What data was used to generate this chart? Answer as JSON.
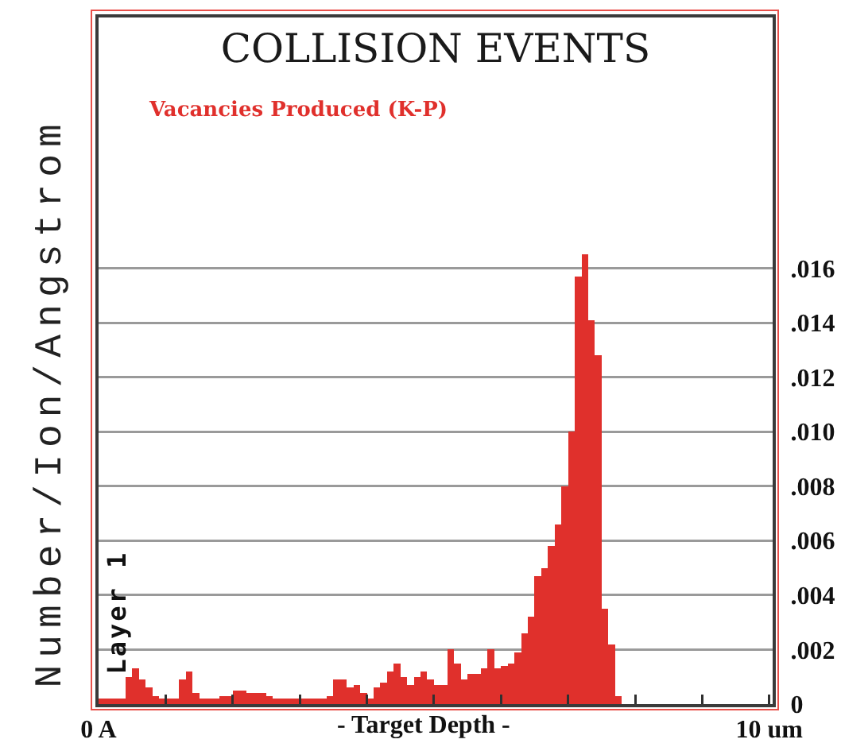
{
  "chart_data": {
    "type": "histogram",
    "title": "COLLISION EVENTS",
    "xlabel": "- Target Depth -",
    "ylabel": "Number/Ion/Angstrom",
    "annotations": [
      "Layer 1"
    ],
    "bins": [
      0,
      0.1,
      0.2,
      0.3,
      0.4,
      0.5,
      0.6,
      0.7,
      0.8,
      0.9,
      1,
      1.1,
      1.2,
      1.3,
      1.4,
      1.5,
      1.6,
      1.7,
      1.8,
      1.9,
      2,
      2.1,
      2.2,
      2.3,
      2.4,
      2.5,
      2.6,
      2.7,
      2.8,
      2.9,
      3,
      3.1,
      3.2,
      3.3,
      3.4,
      3.5,
      3.6,
      3.7,
      3.8,
      3.9,
      4,
      4.1,
      4.2,
      4.3,
      4.4,
      4.5,
      4.6,
      4.7,
      4.8,
      4.9,
      5,
      5.1,
      5.2,
      5.3,
      5.4,
      5.5,
      5.6,
      5.7,
      5.8,
      5.9,
      6,
      6.1,
      6.2,
      6.3,
      6.4,
      6.5,
      6.6,
      6.7,
      6.8,
      6.9,
      7,
      7.1,
      7.2,
      7.3,
      7.4,
      7.5,
      7.6,
      7.7,
      7.8
    ],
    "series": [
      {
        "name": "Vacancies Produced (K-P)",
        "color": "#e0302c",
        "values": [
          0.0002,
          0.0002,
          0.0002,
          0.0002,
          0.001,
          0.0013,
          0.0009,
          0.0006,
          0.0003,
          0.0002,
          0.0002,
          0.0002,
          0.0009,
          0.0012,
          0.0004,
          0.0002,
          0.0002,
          0.0002,
          0.0003,
          0.0003,
          0.0005,
          0.0005,
          0.0004,
          0.0004,
          0.0004,
          0.0003,
          0.0002,
          0.0002,
          0.0002,
          0.0002,
          0.0002,
          0.0002,
          0.0002,
          0.0002,
          0.0003,
          0.0009,
          0.0009,
          0.0006,
          0.0007,
          0.0004,
          0.0002,
          0.0006,
          0.0008,
          0.0012,
          0.0015,
          0.001,
          0.0007,
          0.001,
          0.0012,
          0.0009,
          0.0007,
          0.0007,
          0.002,
          0.0015,
          0.0009,
          0.0011,
          0.0011,
          0.0013,
          0.002,
          0.0013,
          0.0014,
          0.0015,
          0.0019,
          0.0026,
          0.0032,
          0.0047,
          0.005,
          0.0058,
          0.0066,
          0.008,
          0.01,
          0.0157,
          0.0165,
          0.0141,
          0.0128,
          0.0035,
          0.0022,
          0.0003
        ]
      }
    ],
    "xlim": [
      0,
      10.05
    ],
    "ylim": [
      0,
      0.0252
    ],
    "xticks": [
      {
        "value": 0,
        "label": "0 A"
      },
      {
        "value": 1,
        "label": null
      },
      {
        "value": 2,
        "label": null
      },
      {
        "value": 3,
        "label": null
      },
      {
        "value": 4,
        "label": null
      },
      {
        "value": 5,
        "label": null
      },
      {
        "value": 6,
        "label": null
      },
      {
        "value": 7,
        "label": null
      },
      {
        "value": 8,
        "label": null
      },
      {
        "value": 9,
        "label": null
      },
      {
        "value": 10,
        "label": "10 um"
      }
    ],
    "yticks": [
      0,
      {
        "value": 0.002,
        "label": ".002"
      },
      {
        "value": 0.004,
        "label": ".004"
      },
      {
        "value": 0.006,
        "label": ".006"
      },
      {
        "value": 0.008,
        "label": ".008"
      },
      {
        "value": 0.01,
        "label": ".010"
      },
      {
        "value": 0.012,
        "label": ".012"
      },
      {
        "value": 0.014,
        "label": ".014"
      },
      {
        "value": 0.016,
        "label": ".016"
      }
    ],
    "grid": "y"
  }
}
